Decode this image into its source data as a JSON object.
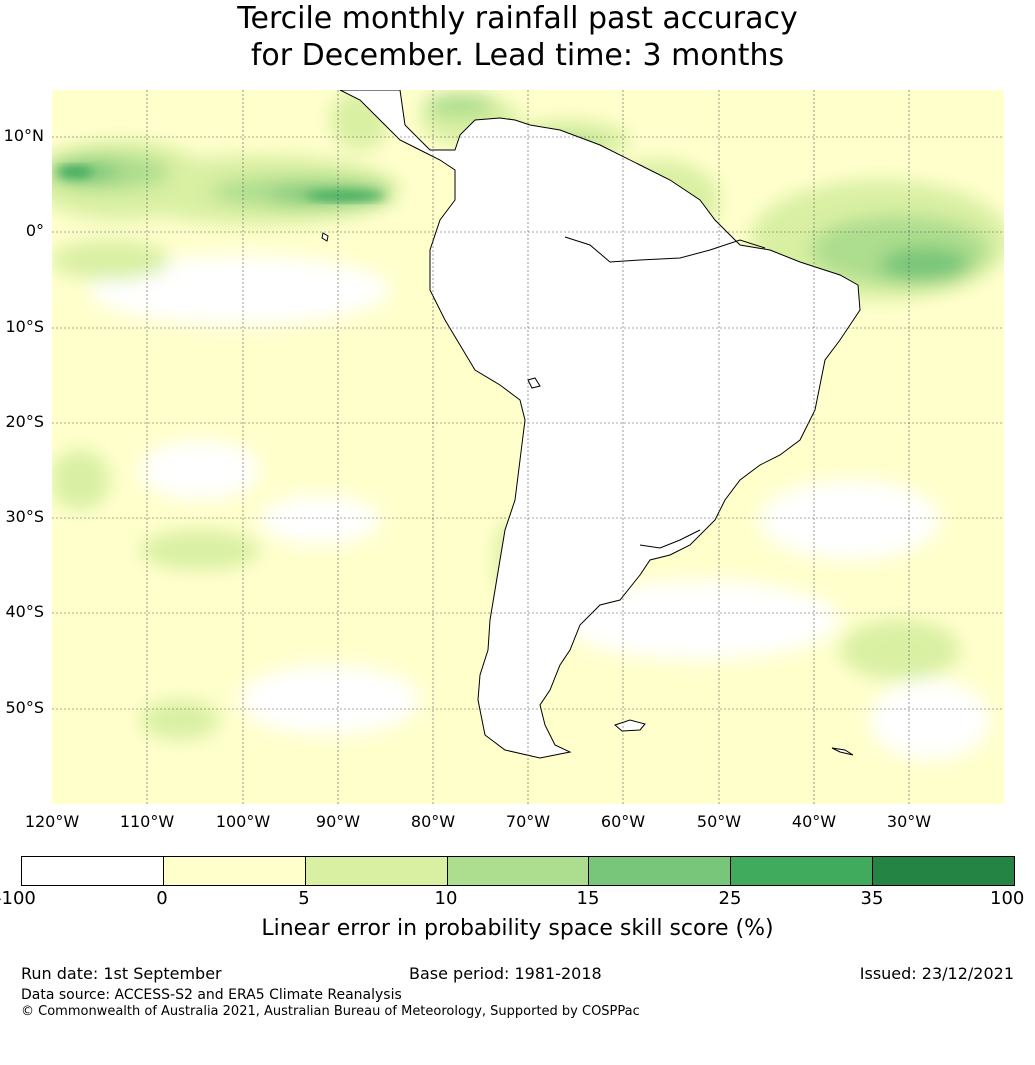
{
  "title": {
    "line1": "Tercile monthly rainfall past accuracy",
    "line2": "for December. Lead time: 3 months"
  },
  "map": {
    "lat_labels": [
      "10°N",
      "0°",
      "10°S",
      "20°S",
      "30°S",
      "40°S",
      "50°S"
    ],
    "lon_labels": [
      "120°W",
      "110°W",
      "100°W",
      "90°W",
      "80°W",
      "70°W",
      "60°W",
      "50°W",
      "40°W",
      "30°W"
    ],
    "lon_range": [
      -120,
      -20
    ],
    "lat_range": [
      -60,
      15
    ],
    "grid": true,
    "land_fill": "#ffffff",
    "ocean_base": "#ffffcc"
  },
  "colorbar": {
    "ticks": [
      "-100",
      "0",
      "5",
      "10",
      "15",
      "25",
      "35",
      "100"
    ],
    "colors": [
      "#ffffff",
      "#ffffcc",
      "#d9f0a3",
      "#addd8e",
      "#78c679",
      "#41ab5d",
      "#238443"
    ],
    "label": "Linear error in probability space skill score (%)"
  },
  "footer": {
    "run_date": "Run date: 1st September",
    "base_period": "Base period: 1981-2018",
    "issued": "Issued: 23/12/2021",
    "data_source": "Data source: ACCESS-S2 and ERA5 Climate Reanalysis",
    "copyright": "© Commonwealth of Australia 2021, Australian Bureau of Meteorology, Supported by COSPPac"
  }
}
